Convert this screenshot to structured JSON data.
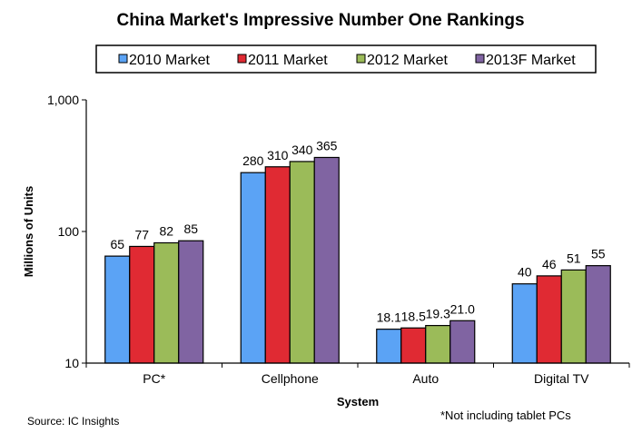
{
  "chart_data": {
    "type": "bar",
    "title": "China Market's Impressive Number One Rankings",
    "xlabel": "System",
    "ylabel": "Millions of Units",
    "yscale": "log",
    "ylim": [
      10,
      1000
    ],
    "yticks": [
      10,
      100,
      1000
    ],
    "ytick_labels": [
      "10",
      "100",
      "1,000"
    ],
    "categories": [
      "PC*",
      "Cellphone",
      "Auto",
      "Digital TV"
    ],
    "series": [
      {
        "name": "2010 Market",
        "color": "#5ba3f5",
        "values": [
          65,
          280,
          18.1,
          40
        ],
        "labels": [
          "65",
          "280",
          "18.1",
          "40"
        ]
      },
      {
        "name": "2011 Market",
        "color": "#e02a33",
        "values": [
          77,
          310,
          18.5,
          46
        ],
        "labels": [
          "77",
          "310",
          "18.5",
          "46"
        ]
      },
      {
        "name": "2012 Market",
        "color": "#9bbb59",
        "values": [
          82,
          340,
          19.3,
          51
        ],
        "labels": [
          "82",
          "340",
          "19.3",
          "51"
        ]
      },
      {
        "name": "2013F Market",
        "color": "#8064a2",
        "values": [
          85,
          365,
          21.0,
          55
        ],
        "labels": [
          "85",
          "365",
          "21.0",
          "55"
        ]
      }
    ],
    "legend_position": "top",
    "grid": false
  },
  "source": "Source: IC Insights",
  "footnote": "*Not including tablet PCs"
}
